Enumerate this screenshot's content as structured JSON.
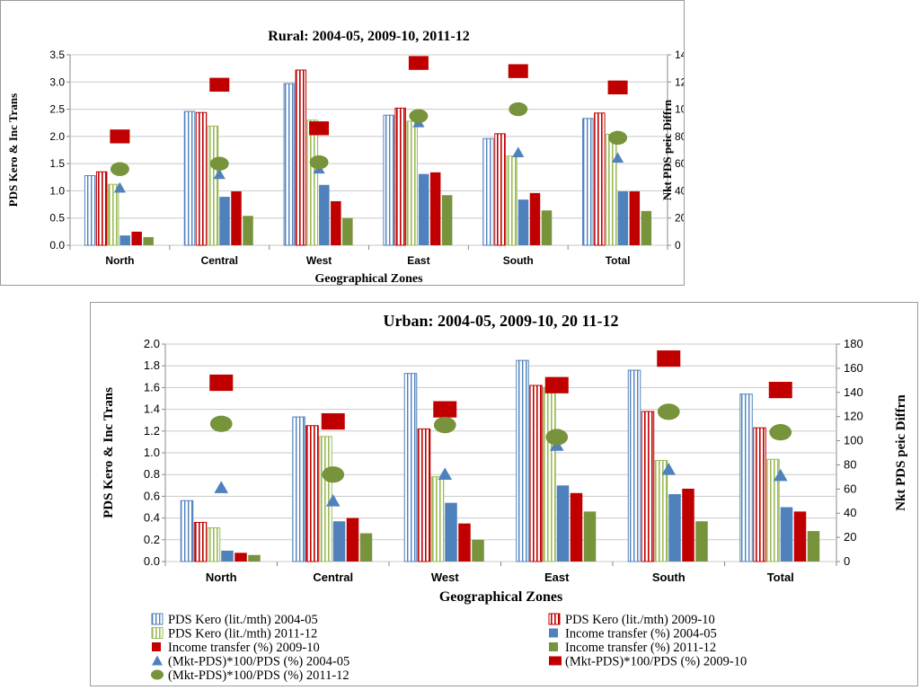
{
  "series_style": [
    {
      "name": "PDS Kero (lit./mth) 2004-05",
      "kind": "bar",
      "pattern": "vstripe-blue",
      "color": "#4f81bd"
    },
    {
      "name": "PDS Kero (lit./mth) 2009-10",
      "kind": "bar",
      "pattern": "vstripe-red",
      "color": "#c00000"
    },
    {
      "name": "PDS Kero (lit./mth) 2011-12",
      "kind": "bar",
      "pattern": "vstripe-green",
      "color": "#9bbb59"
    },
    {
      "name": "Income transfer (%) 2004-05",
      "kind": "bar",
      "pattern": "solid",
      "color": "#4f81bd"
    },
    {
      "name": "Income transfer (%) 2009-10",
      "kind": "bar",
      "pattern": "solid",
      "color": "#c00000"
    },
    {
      "name": "Income transfer (%) 2011-12",
      "kind": "bar",
      "pattern": "solid",
      "color": "#77933c"
    },
    {
      "name": "(Mkt-PDS)*100/PDS (%) 2004-05",
      "kind": "marker",
      "shape": "triangle",
      "color": "#4f81bd"
    },
    {
      "name": "(Mkt-PDS)*100/PDS (%) 2009-10",
      "kind": "marker",
      "shape": "square",
      "color": "#c00000"
    },
    {
      "name": "(Mkt-PDS)*100/PDS (%) 2011-12",
      "kind": "marker",
      "shape": "circle",
      "color": "#77933c"
    }
  ],
  "legend": {
    "items": [
      "PDS Kero (lit./mth) 2004-05",
      "PDS Kero (lit./mth) 2009-10",
      "PDS Kero (lit./mth) 2011-12",
      "Income transfer (%) 2004-05",
      "Income transfer (%) 2009-10",
      "Income transfer (%) 2011-12",
      "(Mkt-PDS)*100/PDS (%) 2004-05",
      "(Mkt-PDS)*100/PDS (%) 2009-10",
      "(Mkt-PDS)*100/PDS (%) 2011-12"
    ]
  },
  "chart_data": [
    {
      "type": "bar",
      "title": "Rural:  2004-05, 2009-10, 2011-12",
      "xlabel": "Geographical Zones",
      "ylabel": "PDS Kero & Inc Trans",
      "y2label": "Nkt PDS peic Diffrn",
      "categories": [
        "North",
        "Central",
        "West",
        "East",
        "South",
        "Total"
      ],
      "ylim": [
        0,
        3.5
      ],
      "yticks": [
        "0.0",
        "0.5",
        "1.0",
        "1.5",
        "2.0",
        "2.5",
        "3.0",
        "3.5"
      ],
      "y2lim": [
        0,
        140
      ],
      "y2ticks": [
        "0",
        "20",
        "40",
        "60",
        "80",
        "100",
        "120",
        "140"
      ],
      "grid": true,
      "series": [
        {
          "name": "PDS Kero (lit./mth) 2004-05",
          "axis": "left",
          "values": [
            1.28,
            2.46,
            2.97,
            2.39,
            1.96,
            2.33
          ]
        },
        {
          "name": "PDS Kero (lit./mth) 2009-10",
          "axis": "left",
          "values": [
            1.35,
            2.44,
            3.22,
            2.52,
            2.05,
            2.43
          ]
        },
        {
          "name": "PDS Kero (lit./mth) 2011-12",
          "axis": "left",
          "values": [
            1.12,
            2.19,
            2.3,
            2.28,
            1.64,
            2.04
          ]
        },
        {
          "name": "Income transfer (%) 2004-05",
          "axis": "left",
          "values": [
            0.18,
            0.89,
            1.11,
            1.31,
            0.84,
            0.99
          ]
        },
        {
          "name": "Income transfer (%) 2009-10",
          "axis": "left",
          "values": [
            0.25,
            0.99,
            0.81,
            1.34,
            0.96,
            0.99
          ]
        },
        {
          "name": "Income transfer (%) 2011-12",
          "axis": "left",
          "values": [
            0.15,
            0.54,
            0.5,
            0.92,
            0.64,
            0.63
          ]
        },
        {
          "name": "(Mkt-PDS)*100/PDS (%) 2004-05",
          "axis": "right",
          "values": [
            42,
            52,
            56,
            90,
            68,
            64
          ]
        },
        {
          "name": "(Mkt-PDS)*100/PDS (%) 2009-10",
          "axis": "right",
          "values": [
            80,
            118,
            86,
            134,
            128,
            116
          ]
        },
        {
          "name": "(Mkt-PDS)*100/PDS (%) 2011-12",
          "axis": "right",
          "values": [
            56,
            60,
            61,
            95,
            100,
            79
          ]
        }
      ]
    },
    {
      "type": "bar",
      "title": "Urban:  2004-05, 2009-10, 20 11-12",
      "xlabel": "Geographical Zones",
      "ylabel": "PDS Kero & Inc Trans",
      "y2label": "Nkt PDS peic Diffrn",
      "categories": [
        "North",
        "Central",
        "West",
        "East",
        "South",
        "Total"
      ],
      "ylim": [
        0,
        2.0
      ],
      "yticks": [
        "0.0",
        "0.2",
        "0.4",
        "0.6",
        "0.8",
        "1.0",
        "1.2",
        "1.4",
        "1.6",
        "1.8",
        "2.0"
      ],
      "y2lim": [
        0,
        180
      ],
      "y2ticks": [
        "0",
        "20",
        "40",
        "60",
        "80",
        "100",
        "120",
        "140",
        "160",
        "180"
      ],
      "grid": true,
      "series": [
        {
          "name": "PDS Kero (lit./mth) 2004-05",
          "axis": "left",
          "values": [
            0.56,
            1.33,
            1.73,
            1.85,
            1.76,
            1.54
          ]
        },
        {
          "name": "PDS Kero (lit./mth) 2009-10",
          "axis": "left",
          "values": [
            0.36,
            1.25,
            1.22,
            1.62,
            1.38,
            1.23
          ]
        },
        {
          "name": "PDS Kero (lit./mth) 2011-12",
          "axis": "left",
          "values": [
            0.31,
            1.15,
            0.78,
            1.6,
            0.93,
            0.94
          ]
        },
        {
          "name": "Income transfer (%) 2004-05",
          "axis": "left",
          "values": [
            0.1,
            0.37,
            0.54,
            0.7,
            0.62,
            0.5
          ]
        },
        {
          "name": "Income transfer (%) 2009-10",
          "axis": "left",
          "values": [
            0.08,
            0.4,
            0.35,
            0.63,
            0.67,
            0.46
          ]
        },
        {
          "name": "Income transfer (%) 2011-12",
          "axis": "left",
          "values": [
            0.06,
            0.26,
            0.2,
            0.46,
            0.37,
            0.28
          ]
        },
        {
          "name": "(Mkt-PDS)*100/PDS (%) 2004-05",
          "axis": "right",
          "values": [
            61,
            50,
            72,
            96,
            76,
            71
          ]
        },
        {
          "name": "(Mkt-PDS)*100/PDS (%) 2009-10",
          "axis": "right",
          "values": [
            148,
            116,
            126,
            146,
            168,
            142
          ]
        },
        {
          "name": "(Mkt-PDS)*100/PDS (%) 2011-12",
          "axis": "right",
          "values": [
            114,
            72,
            113,
            103,
            124,
            107
          ]
        }
      ]
    }
  ]
}
